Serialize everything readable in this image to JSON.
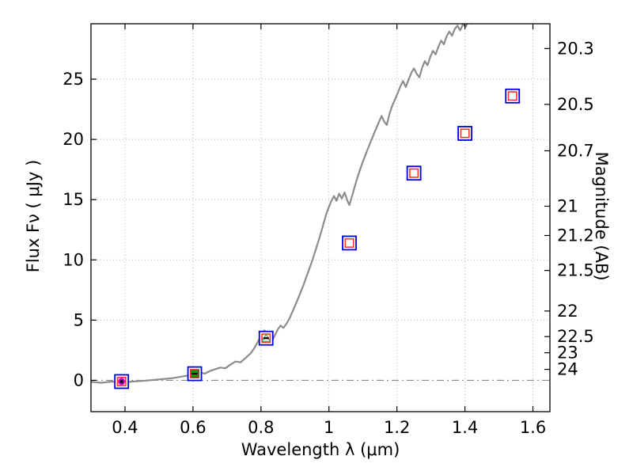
{
  "figure": {
    "background": "#ffffff"
  },
  "chart_data": {
    "type": "line",
    "title": "",
    "xlabel": "Wavelength  λ (μm)",
    "ylabel_left": "Flux  Fν  ( μJy )",
    "ylabel_right": "Magnitude (AB)",
    "xlim": [
      0.3,
      1.65
    ],
    "ylim": [
      -2.6,
      29.6
    ],
    "grid": "dotted",
    "grid_color": "#b5b5b5",
    "x_ticks": {
      "values": [
        0.4,
        0.6,
        0.8,
        1.0,
        1.2,
        1.4,
        1.6
      ],
      "labels": [
        "0.4",
        "0.6",
        "0.8",
        "1",
        "1.2",
        "1.4",
        "1.6"
      ]
    },
    "y_ticks_left": {
      "values": [
        0,
        5,
        10,
        15,
        20,
        25
      ],
      "labels": [
        "0",
        "5",
        "10",
        "15",
        "20",
        "25"
      ]
    },
    "y_ticks_right_magnitude": {
      "values": [
        20.3,
        20.5,
        20.7,
        21,
        21.2,
        21.5,
        22,
        22.5,
        23,
        24
      ],
      "labels": [
        "20.3",
        "20.5",
        "20.7",
        "21",
        "21.2",
        "21.5",
        "22",
        "22.5",
        "23",
        "24"
      ]
    },
    "zero_line": {
      "y": 0,
      "style": "dash-dot",
      "color": "#8a8a8a"
    },
    "spectrum": {
      "name": "model-spectrum",
      "color": "#8c8c8c",
      "points": [
        [
          0.3,
          -0.12
        ],
        [
          0.33,
          -0.2
        ],
        [
          0.36,
          -0.1
        ],
        [
          0.39,
          -0.18
        ],
        [
          0.42,
          -0.1
        ],
        [
          0.45,
          -0.05
        ],
        [
          0.48,
          0.02
        ],
        [
          0.51,
          0.1
        ],
        [
          0.54,
          0.18
        ],
        [
          0.56,
          0.28
        ],
        [
          0.58,
          0.38
        ],
        [
          0.6,
          0.5
        ],
        [
          0.62,
          0.66
        ],
        [
          0.635,
          0.56
        ],
        [
          0.65,
          0.78
        ],
        [
          0.665,
          0.92
        ],
        [
          0.68,
          1.06
        ],
        [
          0.695,
          1.0
        ],
        [
          0.71,
          1.3
        ],
        [
          0.725,
          1.56
        ],
        [
          0.74,
          1.5
        ],
        [
          0.755,
          1.86
        ],
        [
          0.77,
          2.25
        ],
        [
          0.78,
          2.65
        ],
        [
          0.79,
          3.15
        ],
        [
          0.8,
          3.7
        ],
        [
          0.81,
          4.15
        ],
        [
          0.818,
          3.88
        ],
        [
          0.826,
          3.45
        ],
        [
          0.834,
          3.35
        ],
        [
          0.842,
          3.8
        ],
        [
          0.85,
          4.25
        ],
        [
          0.858,
          4.55
        ],
        [
          0.866,
          4.35
        ],
        [
          0.875,
          4.7
        ],
        [
          0.885,
          5.2
        ],
        [
          0.895,
          5.85
        ],
        [
          0.905,
          6.5
        ],
        [
          0.915,
          7.2
        ],
        [
          0.925,
          7.9
        ],
        [
          0.932,
          8.45
        ],
        [
          0.94,
          9.1
        ],
        [
          0.948,
          9.7
        ],
        [
          0.955,
          10.3
        ],
        [
          0.963,
          11.0
        ],
        [
          0.97,
          11.65
        ],
        [
          0.978,
          12.4
        ],
        [
          0.985,
          13.1
        ],
        [
          0.992,
          13.8
        ],
        [
          1.0,
          14.4
        ],
        [
          1.008,
          14.95
        ],
        [
          1.015,
          15.3
        ],
        [
          1.022,
          14.9
        ],
        [
          1.03,
          15.5
        ],
        [
          1.038,
          15.1
        ],
        [
          1.046,
          15.6
        ],
        [
          1.053,
          15.0
        ],
        [
          1.06,
          14.55
        ],
        [
          1.068,
          15.3
        ],
        [
          1.076,
          16.1
        ],
        [
          1.085,
          16.95
        ],
        [
          1.095,
          17.8
        ],
        [
          1.105,
          18.55
        ],
        [
          1.115,
          19.25
        ],
        [
          1.125,
          19.95
        ],
        [
          1.135,
          20.65
        ],
        [
          1.145,
          21.3
        ],
        [
          1.155,
          21.95
        ],
        [
          1.162,
          21.5
        ],
        [
          1.17,
          21.2
        ],
        [
          1.178,
          22.1
        ],
        [
          1.186,
          22.8
        ],
        [
          1.195,
          23.35
        ],
        [
          1.203,
          23.9
        ],
        [
          1.21,
          24.4
        ],
        [
          1.218,
          24.85
        ],
        [
          1.226,
          24.35
        ],
        [
          1.234,
          24.95
        ],
        [
          1.242,
          25.5
        ],
        [
          1.25,
          25.9
        ],
        [
          1.258,
          25.45
        ],
        [
          1.266,
          25.15
        ],
        [
          1.274,
          25.95
        ],
        [
          1.282,
          26.5
        ],
        [
          1.29,
          26.15
        ],
        [
          1.298,
          26.85
        ],
        [
          1.306,
          27.35
        ],
        [
          1.314,
          27.05
        ],
        [
          1.322,
          27.7
        ],
        [
          1.33,
          28.2
        ],
        [
          1.338,
          27.9
        ],
        [
          1.346,
          28.55
        ],
        [
          1.354,
          28.95
        ],
        [
          1.362,
          28.6
        ],
        [
          1.37,
          29.15
        ],
        [
          1.378,
          29.45
        ],
        [
          1.386,
          29.05
        ],
        [
          1.394,
          29.55
        ],
        [
          1.402,
          29.35
        ],
        [
          1.41,
          29.75
        ],
        [
          1.42,
          29.6
        ],
        [
          1.43,
          30.1
        ],
        [
          1.442,
          30.8
        ]
      ]
    },
    "photometry": {
      "name": "photometric-points",
      "outer_marker": {
        "shape": "square",
        "color": "#0000dd"
      },
      "inner_marker_color": "#ff3333",
      "points": [
        {
          "wavelength": 0.39,
          "flux": -0.1,
          "inner": {
            "shape": "circle",
            "color": "#c000c0"
          },
          "center_mark": "dot"
        },
        {
          "wavelength": 0.605,
          "flux": 0.55,
          "inner": {
            "shape": "square",
            "color": "#00a000"
          },
          "center_mark": "dash"
        },
        {
          "wavelength": 0.815,
          "flux": 3.5,
          "inner": {
            "shape": "triangle",
            "color": "#cfeede"
          },
          "center_mark": "dash"
        },
        {
          "wavelength": 1.06,
          "flux": 11.4,
          "inner": {
            "shape": "open-square",
            "color": "#ff3333"
          },
          "center_mark": "none"
        },
        {
          "wavelength": 1.25,
          "flux": 17.2,
          "inner": {
            "shape": "open-square",
            "color": "#ff3333"
          },
          "center_mark": "none"
        },
        {
          "wavelength": 1.4,
          "flux": 20.5,
          "inner": {
            "shape": "open-square",
            "color": "#ff3333"
          },
          "center_mark": "none"
        },
        {
          "wavelength": 1.54,
          "flux": 23.6,
          "inner": {
            "shape": "open-square",
            "color": "#ff3333"
          },
          "center_mark": "none"
        }
      ]
    },
    "ab_magnitude_mapping_note": "right axis shows AB magnitude of the left-axis flux scale"
  }
}
